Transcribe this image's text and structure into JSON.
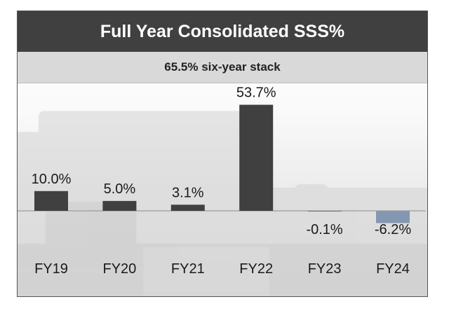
{
  "chart_data": {
    "type": "bar",
    "title": "Full Year Consolidated SSS%",
    "subtitle": "65.5% six-year stack",
    "categories": [
      "FY19",
      "FY20",
      "FY21",
      "FY22",
      "FY23",
      "FY24"
    ],
    "values": [
      10.0,
      5.0,
      3.1,
      53.7,
      -0.1,
      -6.2
    ],
    "data_labels": [
      "10.0%",
      "5.0%",
      "3.1%",
      "53.7%",
      "-0.1%",
      "-6.2%"
    ],
    "bar_colors": [
      "#404040",
      "#404040",
      "#404040",
      "#404040",
      "#404040",
      "#8497b0"
    ],
    "ylim": [
      -8,
      58
    ],
    "xlabel": "",
    "ylabel": "",
    "grid": false
  },
  "colors": {
    "title_bar": "#404040",
    "subtitle_bar": "#d9d9d9",
    "positive_bar": "#404040",
    "negative_bar": "#8497b0"
  }
}
